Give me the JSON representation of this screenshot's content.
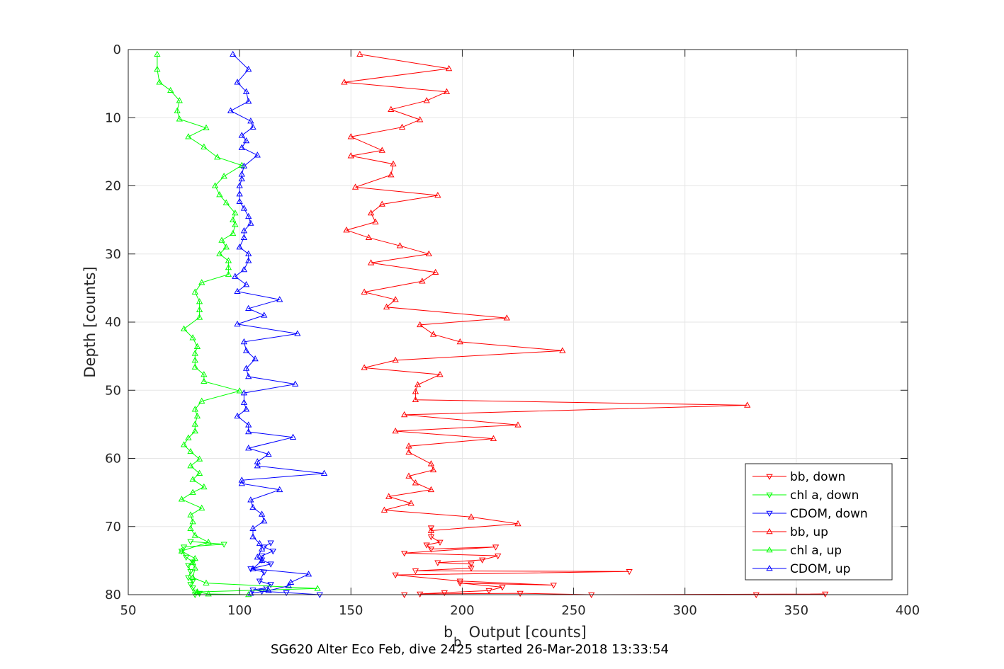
{
  "chart_data": {
    "type": "line",
    "title": "",
    "caption": "SG620 Alter Eco Feb, dive 2425 started 26-Mar-2018 13:33:54",
    "xlabel_main": "b",
    "xlabel_sub": "b",
    "xlabel_rest": " Output [counts]",
    "ylabel": "Depth [counts]",
    "xlim": [
      50,
      400
    ],
    "ylim": [
      0,
      80
    ],
    "y_reversed": true,
    "grid": true,
    "legend_position": "bottom-right",
    "xticks": [
      "50",
      "100",
      "150",
      "200",
      "250",
      "300",
      "350",
      "400"
    ],
    "yticks": [
      "0",
      "10",
      "20",
      "30",
      "40",
      "50",
      "60",
      "70",
      "80"
    ],
    "colors": {
      "bb": "#ff0000",
      "chl": "#00ff00",
      "cdom": "#0000ff",
      "grid": "#e6e6e6",
      "axis": "#262626"
    },
    "series": [
      {
        "name": "bb, down",
        "marker": "triangle-down",
        "color": "#ff0000",
        "points": [
          [
            174,
            80
          ],
          [
            332,
            80
          ],
          [
            363,
            79.9
          ],
          [
            258,
            80
          ],
          [
            226,
            79.8
          ],
          [
            181,
            79.9
          ],
          [
            192,
            79.7
          ],
          [
            212,
            79.4
          ],
          [
            218,
            78.9
          ],
          [
            199,
            78.3
          ],
          [
            241,
            78.6
          ],
          [
            199,
            78.0
          ],
          [
            170,
            77.1
          ],
          [
            275,
            76.6
          ],
          [
            179,
            76.5
          ],
          [
            204,
            76.1
          ],
          [
            204,
            75.5
          ],
          [
            189,
            75.3
          ],
          [
            209,
            74.9
          ],
          [
            216,
            74.3
          ],
          [
            174,
            73.9
          ],
          [
            215,
            73.0
          ],
          [
            186,
            73.3
          ],
          [
            184,
            72.7
          ],
          [
            190,
            72.3
          ],
          [
            186,
            71.5
          ],
          [
            186,
            70.2
          ]
        ]
      },
      {
        "name": "chl a, down",
        "marker": "triangle-down",
        "color": "#00ff00",
        "points": [
          [
            80,
            80
          ],
          [
            82,
            79.8
          ],
          [
            80,
            79.6
          ],
          [
            79,
            79.0
          ],
          [
            78,
            78.5
          ],
          [
            79,
            78.0
          ],
          [
            77,
            77.5
          ],
          [
            78,
            76.6
          ],
          [
            77,
            75.7
          ],
          [
            79,
            75.2
          ],
          [
            76,
            74.5
          ],
          [
            74,
            73.6
          ],
          [
            75,
            73.0
          ],
          [
            93,
            72.6
          ],
          [
            78,
            72.2
          ]
        ]
      },
      {
        "name": "CDOM, down",
        "marker": "triangle-down",
        "color": "#0000ff",
        "points": [
          [
            136,
            80
          ],
          [
            121,
            79.7
          ],
          [
            110,
            79.5
          ],
          [
            106,
            79.3
          ],
          [
            112,
            79.0
          ],
          [
            114,
            78.5
          ],
          [
            109,
            78.0
          ],
          [
            111,
            76.7
          ],
          [
            105,
            76.2
          ],
          [
            114,
            75.5
          ],
          [
            110,
            74.9
          ],
          [
            110,
            74.3
          ],
          [
            115,
            73.6
          ],
          [
            111,
            73.0
          ],
          [
            114,
            72.4
          ]
        ]
      },
      {
        "name": "bb, up",
        "marker": "triangle-up",
        "color": "#ff0000",
        "points": [
          [
            154,
            0.7
          ],
          [
            194,
            2.8
          ],
          [
            147,
            4.8
          ],
          [
            193,
            6.2
          ],
          [
            184,
            7.5
          ],
          [
            168,
            8.8
          ],
          [
            181,
            10.3
          ],
          [
            173,
            11.4
          ],
          [
            150,
            12.8
          ],
          [
            164,
            14.8
          ],
          [
            150,
            15.6
          ],
          [
            169,
            16.8
          ],
          [
            168,
            18.4
          ],
          [
            152,
            20.2
          ],
          [
            189,
            21.4
          ],
          [
            164,
            22.7
          ],
          [
            159,
            24.0
          ],
          [
            161,
            25.3
          ],
          [
            148,
            26.5
          ],
          [
            158,
            27.6
          ],
          [
            172,
            28.8
          ],
          [
            185,
            30.0
          ],
          [
            159,
            31.3
          ],
          [
            188,
            32.7
          ],
          [
            182,
            34.0
          ],
          [
            156,
            35.6
          ],
          [
            170,
            36.7
          ],
          [
            166,
            37.8
          ],
          [
            220,
            39.4
          ],
          [
            181,
            40.4
          ],
          [
            187,
            41.8
          ],
          [
            199,
            42.9
          ],
          [
            245,
            44.2
          ],
          [
            170,
            45.6
          ],
          [
            156,
            46.7
          ],
          [
            190,
            47.7
          ],
          [
            180,
            49.2
          ],
          [
            179,
            50.2
          ],
          [
            179,
            51.4
          ],
          [
            328,
            52.2
          ],
          [
            174,
            53.6
          ],
          [
            225,
            55.1
          ],
          [
            170,
            56.0
          ],
          [
            214,
            57.1
          ],
          [
            176,
            58.2
          ],
          [
            176,
            59.1
          ],
          [
            186,
            60.8
          ],
          [
            187,
            61.7
          ],
          [
            176,
            62.6
          ],
          [
            179,
            63.6
          ],
          [
            186,
            64.6
          ],
          [
            167,
            65.6
          ],
          [
            177,
            66.6
          ],
          [
            165,
            67.6
          ],
          [
            204,
            68.6
          ],
          [
            225,
            69.6
          ],
          [
            186,
            70.6
          ]
        ]
      },
      {
        "name": "chl a, up",
        "marker": "triangle-up",
        "color": "#00ff00",
        "points": [
          [
            104,
            80
          ],
          [
            86,
            79.9
          ],
          [
            81,
            79.6
          ],
          [
            135,
            79.1
          ],
          [
            85,
            78.3
          ],
          [
            79,
            77.5
          ],
          [
            80,
            76.1
          ],
          [
            79,
            75.3
          ],
          [
            80,
            74.7
          ],
          [
            74,
            73.6
          ],
          [
            86,
            72.3
          ],
          [
            80,
            71.3
          ],
          [
            78,
            70.3
          ],
          [
            79,
            69.3
          ],
          [
            78,
            68.3
          ],
          [
            83,
            67.3
          ],
          [
            74,
            66.0
          ],
          [
            79,
            65.0
          ],
          [
            84,
            64.2
          ],
          [
            79,
            63.1
          ],
          [
            82,
            62.2
          ],
          [
            78,
            61.1
          ],
          [
            82,
            60.1
          ],
          [
            78,
            59.0
          ],
          [
            75,
            58.0
          ],
          [
            77,
            57.0
          ],
          [
            80,
            56.0
          ],
          [
            80,
            55.0
          ],
          [
            81,
            53.8
          ],
          [
            80,
            52.8
          ],
          [
            83,
            51.6
          ],
          [
            100,
            50.1
          ],
          [
            84,
            48.7
          ],
          [
            84,
            47.7
          ],
          [
            80,
            46.6
          ],
          [
            80,
            45.6
          ],
          [
            80,
            44.6
          ],
          [
            81,
            43.6
          ],
          [
            79,
            42.3
          ],
          [
            75,
            41.0
          ],
          [
            82,
            39.3
          ],
          [
            82,
            38.2
          ],
          [
            82,
            37.0
          ],
          [
            80,
            35.6
          ],
          [
            83,
            34.2
          ],
          [
            95,
            33.0
          ],
          [
            95,
            32.0
          ],
          [
            95,
            31.0
          ],
          [
            91,
            30.0
          ],
          [
            94,
            29.0
          ],
          [
            92,
            28.0
          ],
          [
            97,
            27.0
          ],
          [
            98,
            25.7
          ],
          [
            97,
            25.0
          ],
          [
            98,
            24.0
          ],
          [
            94,
            22.5
          ],
          [
            91,
            21.3
          ],
          [
            89,
            20.0
          ],
          [
            93,
            18.6
          ],
          [
            101,
            17.0
          ],
          [
            90,
            15.8
          ],
          [
            84,
            14.3
          ],
          [
            77,
            12.8
          ],
          [
            85,
            11.5
          ],
          [
            73,
            10.2
          ],
          [
            72,
            9.0
          ],
          [
            73,
            7.5
          ],
          [
            69,
            6.0
          ],
          [
            64,
            4.8
          ],
          [
            63,
            2.9
          ],
          [
            63,
            0.7
          ]
        ]
      },
      {
        "name": "CDOM, up",
        "marker": "triangle-up",
        "color": "#0000ff",
        "points": [
          [
            105,
            79.8
          ],
          [
            113,
            79.4
          ],
          [
            122,
            78.7
          ],
          [
            123,
            78.2
          ],
          [
            131,
            77.0
          ],
          [
            106,
            76.2
          ],
          [
            110,
            75.0
          ],
          [
            108,
            74.5
          ],
          [
            110,
            73.3
          ],
          [
            109,
            72.5
          ],
          [
            106,
            71.5
          ],
          [
            106,
            70.3
          ],
          [
            111,
            69.2
          ],
          [
            110,
            68.2
          ],
          [
            106,
            67.2
          ],
          [
            105,
            66.1
          ],
          [
            118,
            64.6
          ],
          [
            101,
            63.7
          ],
          [
            101,
            63.2
          ],
          [
            138,
            62.2
          ],
          [
            108,
            61.1
          ],
          [
            108,
            60.5
          ],
          [
            113,
            59.4
          ],
          [
            104,
            58.5
          ],
          [
            124,
            56.9
          ],
          [
            104,
            56.1
          ],
          [
            104,
            55.1
          ],
          [
            99,
            53.8
          ],
          [
            103,
            52.8
          ],
          [
            102,
            51.8
          ],
          [
            102,
            50.4
          ],
          [
            125,
            49.1
          ],
          [
            104,
            48.0
          ],
          [
            103,
            46.8
          ],
          [
            107,
            45.4
          ],
          [
            103,
            44.2
          ],
          [
            102,
            42.9
          ],
          [
            126,
            41.7
          ],
          [
            99,
            40.3
          ],
          [
            111,
            39.0
          ],
          [
            104,
            38.0
          ],
          [
            118,
            36.7
          ],
          [
            99,
            35.5
          ],
          [
            103,
            34.5
          ],
          [
            98,
            33.3
          ],
          [
            102,
            32.3
          ],
          [
            104,
            31.0
          ],
          [
            104,
            30.0
          ],
          [
            100,
            29.0
          ],
          [
            102,
            27.6
          ],
          [
            102,
            26.6
          ],
          [
            105,
            25.5
          ],
          [
            104,
            24.5
          ],
          [
            102,
            23.3
          ],
          [
            100,
            22.3
          ],
          [
            100,
            21.2
          ],
          [
            100,
            20.0
          ],
          [
            101,
            19.0
          ],
          [
            101,
            18.3
          ],
          [
            102,
            17.1
          ],
          [
            108,
            15.5
          ],
          [
            101,
            14.4
          ],
          [
            103,
            13.4
          ],
          [
            101,
            12.6
          ],
          [
            106,
            11.4
          ],
          [
            105,
            10.5
          ],
          [
            96,
            9.0
          ],
          [
            104,
            7.6
          ],
          [
            103,
            6.2
          ],
          [
            99,
            4.8
          ],
          [
            104,
            2.9
          ],
          [
            97,
            0.7
          ]
        ]
      }
    ]
  }
}
